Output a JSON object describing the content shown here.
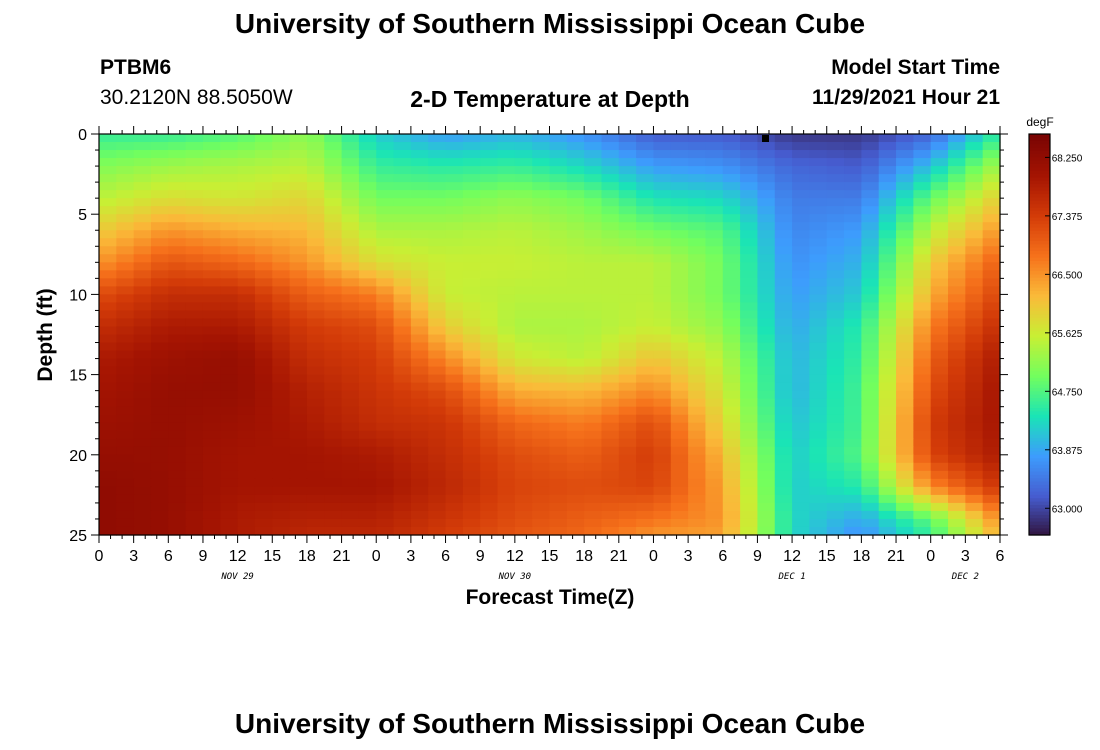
{
  "header": {
    "title": "University of Southern Mississippi Ocean Cube",
    "station": "PTBM6",
    "coords": "30.2120N  88.5050W",
    "subtitle": "2-D Temperature at Depth",
    "model_label": "Model Start Time",
    "model_time": "11/29/2021 Hour 21"
  },
  "footer": {
    "title": "University of Southern Mississippi Ocean Cube"
  },
  "chart_data": {
    "type": "heatmap",
    "title": "2-D Temperature at Depth",
    "xlabel": "Forecast Time(Z)",
    "ylabel": "Depth (ft)",
    "units": "degF",
    "x_ticks": [
      "0",
      "3",
      "6",
      "9",
      "12",
      "15",
      "18",
      "21",
      "0",
      "3",
      "6",
      "9",
      "12",
      "15",
      "18",
      "21",
      "0",
      "3",
      "6",
      "9",
      "12",
      "15",
      "18",
      "21",
      "0",
      "3",
      "6"
    ],
    "x_range_hours": [
      0,
      78
    ],
    "date_labels": [
      {
        "text": "NOV 29",
        "hour": 12
      },
      {
        "text": "NOV 30",
        "hour": 36
      },
      {
        "text": "DEC 1",
        "hour": 60
      },
      {
        "text": "DEC 2",
        "hour": 75
      }
    ],
    "y_ticks": [
      0,
      5,
      10,
      15,
      20,
      25
    ],
    "y_range": [
      0,
      25
    ],
    "y_inverted": true,
    "colorbar_ticks": [
      "68.250",
      "67.375",
      "66.500",
      "65.625",
      "64.750",
      "63.875",
      "63.000"
    ],
    "colorbar_range": [
      62.6,
      68.6
    ],
    "grid_hours": [
      0,
      6,
      12,
      18,
      24,
      30,
      36,
      42,
      48,
      54,
      60,
      66,
      72,
      78
    ],
    "grid_depths": [
      0,
      2,
      4,
      6,
      8,
      10,
      12,
      14,
      16,
      18,
      20,
      22,
      24,
      25
    ],
    "temperature_degF": [
      [
        64.6,
        64.6,
        64.8,
        65.2,
        64.2,
        63.8,
        64.0,
        63.7,
        63.2,
        63.2,
        62.9,
        62.9,
        63.3,
        64.6
      ],
      [
        65.1,
        65.3,
        65.4,
        65.5,
        64.6,
        64.5,
        64.6,
        64.3,
        63.8,
        63.7,
        63.3,
        63.2,
        64.1,
        65.4
      ],
      [
        65.5,
        65.8,
        65.7,
        65.9,
        65.0,
        65.0,
        65.2,
        65.0,
        64.4,
        64.3,
        63.5,
        63.5,
        64.9,
        66.0
      ],
      [
        66.0,
        66.5,
        66.3,
        66.2,
        65.4,
        65.4,
        65.5,
        65.3,
        65.0,
        64.8,
        63.6,
        63.8,
        65.5,
        66.5
      ],
      [
        66.5,
        67.1,
        66.9,
        66.5,
        65.8,
        65.6,
        65.6,
        65.5,
        65.5,
        65.0,
        63.7,
        64.0,
        66.0,
        67.0
      ],
      [
        67.2,
        67.6,
        67.6,
        67.0,
        66.7,
        65.6,
        65.5,
        65.5,
        65.5,
        65.0,
        63.8,
        64.2,
        66.3,
        67.3
      ],
      [
        67.6,
        67.9,
        67.9,
        67.4,
        67.2,
        66.0,
        65.4,
        65.4,
        65.6,
        65.2,
        63.9,
        64.5,
        66.7,
        67.6
      ],
      [
        67.9,
        68.1,
        68.2,
        67.6,
        67.4,
        66.6,
        65.7,
        65.5,
        66.1,
        65.5,
        64.0,
        64.6,
        67.0,
        67.9
      ],
      [
        68.0,
        68.2,
        68.2,
        67.8,
        67.5,
        67.2,
        66.3,
        66.2,
        66.6,
        65.7,
        64.0,
        64.7,
        67.2,
        68.0
      ],
      [
        68.1,
        68.2,
        68.1,
        67.9,
        67.6,
        67.5,
        66.9,
        66.7,
        67.2,
        65.9,
        64.1,
        64.7,
        67.4,
        68.0
      ],
      [
        68.2,
        68.2,
        68.0,
        68.0,
        67.9,
        67.6,
        67.2,
        67.0,
        67.4,
        66.2,
        64.2,
        64.8,
        67.3,
        67.9
      ],
      [
        68.3,
        68.2,
        68.0,
        68.0,
        68.0,
        67.7,
        67.3,
        67.2,
        67.3,
        66.4,
        64.2,
        64.5,
        66.6,
        67.5
      ],
      [
        68.3,
        68.2,
        67.9,
        67.8,
        67.8,
        67.5,
        67.2,
        67.0,
        66.8,
        66.5,
        64.3,
        63.9,
        64.9,
        66.6
      ],
      [
        68.3,
        68.2,
        67.9,
        67.7,
        67.7,
        67.4,
        67.1,
        66.9,
        66.5,
        66.4,
        64.3,
        63.7,
        64.6,
        66.3
      ]
    ]
  }
}
